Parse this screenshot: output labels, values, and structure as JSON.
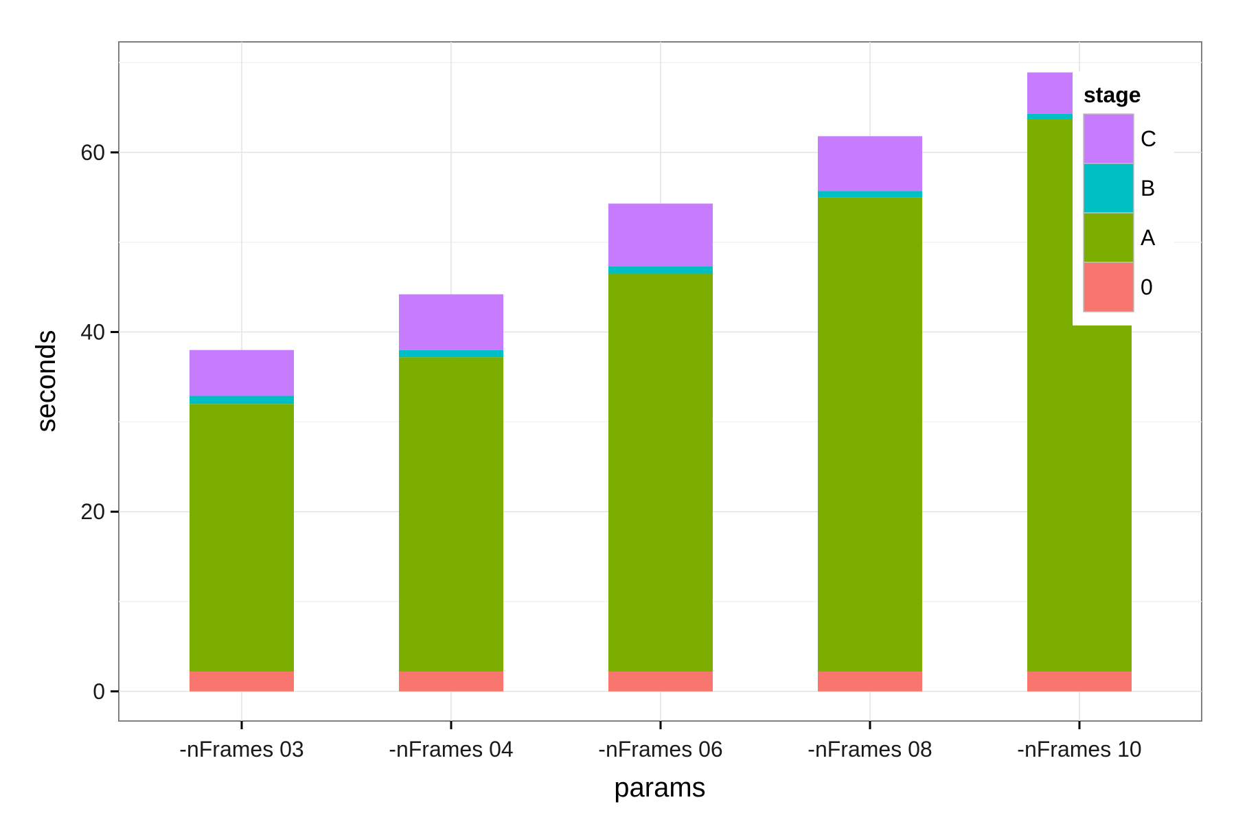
{
  "chart_data": {
    "type": "bar",
    "stacked": true,
    "categories": [
      "-nFrames 03",
      "-nFrames 04",
      "-nFrames 06",
      "-nFrames 08",
      "-nFrames 10"
    ],
    "series": [
      {
        "name": "0",
        "color": "#F8766D",
        "values": [
          2.2,
          2.2,
          2.2,
          2.2,
          2.2
        ]
      },
      {
        "name": "A",
        "color": "#7CAE00",
        "values": [
          29.8,
          35.0,
          44.3,
          52.8,
          61.5
        ]
      },
      {
        "name": "B",
        "color": "#00BFC4",
        "values": [
          0.9,
          0.8,
          0.8,
          0.7,
          0.6
        ]
      },
      {
        "name": "C",
        "color": "#C77CFF",
        "values": [
          5.1,
          6.2,
          7.0,
          6.1,
          4.6
        ]
      }
    ],
    "xlabel": "params",
    "ylabel": "seconds",
    "ylim": [
      -3.3,
      72.3
    ],
    "yticks": [
      0,
      20,
      40,
      60
    ],
    "grid": true,
    "legend": {
      "title": "stage",
      "position": "top-right",
      "order": [
        "C",
        "B",
        "A",
        "0"
      ]
    }
  }
}
